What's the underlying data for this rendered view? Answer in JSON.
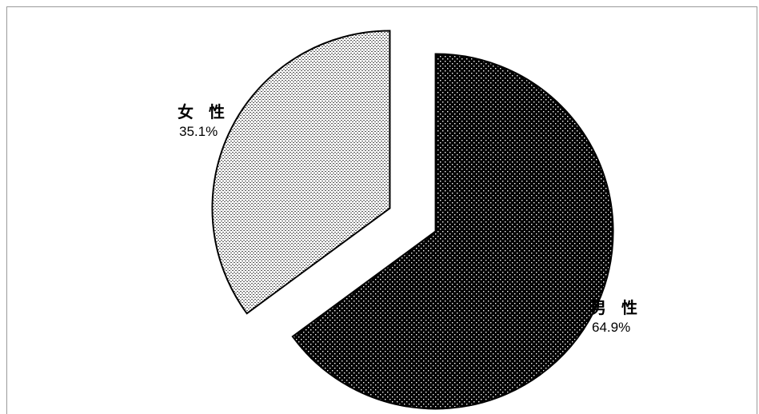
{
  "chart_data": {
    "type": "pie",
    "exploded": true,
    "start_angle_deg": 0,
    "direction": "clockwise",
    "slices": [
      {
        "label": "男 性",
        "value": 64.9,
        "value_label": "64.9%",
        "fill": "#000000",
        "pattern": "white-dots"
      },
      {
        "label": "女 性",
        "value": 35.1,
        "value_label": "35.1%",
        "fill": "#ffffff",
        "pattern": "black-dash-dots"
      }
    ]
  }
}
